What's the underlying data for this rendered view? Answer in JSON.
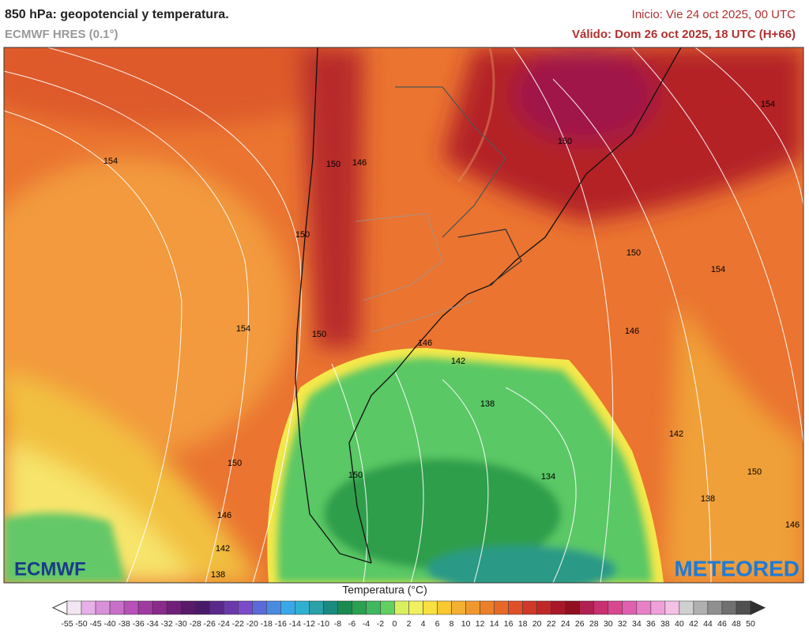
{
  "header": {
    "title": "850 hPa: geopotencial y temperatura.",
    "model": "ECMWF HRES (0.1°)",
    "init": "Inicio: Vie 24 oct 2025, 00 UTC",
    "valid": "Válido: Dom 26 oct 2025, 18 UTC (H+66)"
  },
  "map": {
    "contour_labels": [
      154,
      150,
      146,
      150,
      154,
      150,
      146,
      142,
      138,
      150,
      154,
      150,
      154,
      146,
      142,
      150,
      134,
      138,
      146,
      150,
      150,
      146,
      142,
      138
    ]
  },
  "logos": {
    "left": "ECMWF",
    "right": "METEORED"
  },
  "legend": {
    "title": "Temperatura (°C)",
    "ticks": [
      -55,
      -50,
      -45,
      -40,
      -38,
      -36,
      -34,
      -32,
      -30,
      -28,
      -26,
      -24,
      -22,
      -20,
      -18,
      -16,
      -14,
      -12,
      -10,
      -8,
      -6,
      -4,
      -2,
      0,
      2,
      4,
      6,
      8,
      10,
      12,
      14,
      16,
      18,
      20,
      22,
      24,
      26,
      28,
      30,
      32,
      34,
      36,
      38,
      40,
      42,
      44,
      46,
      48,
      50
    ]
  }
}
